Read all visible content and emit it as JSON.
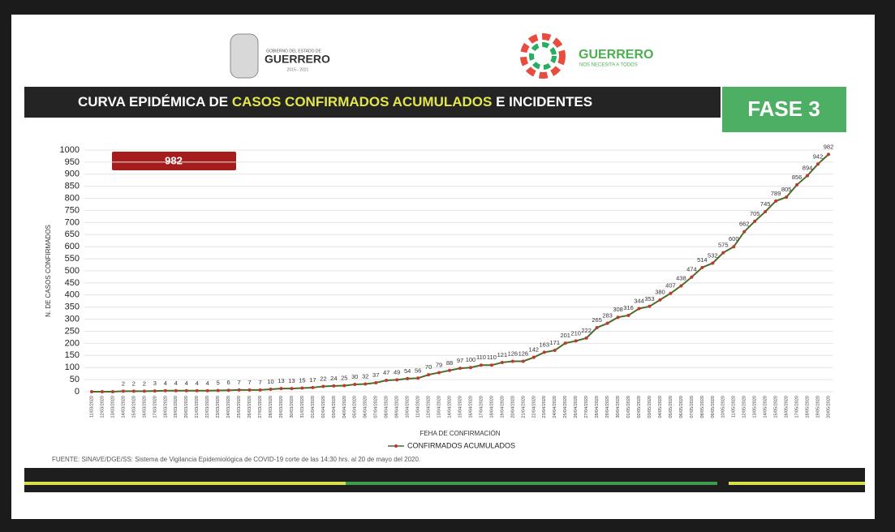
{
  "header": {
    "gov_small": "GOBIERNO DEL ESTADO DE",
    "gov_name": "GUERRERO",
    "gov_years": "2015 - 2021",
    "brand": "GUERRERO",
    "brand_tag": "NOS NECESITA A TODOS"
  },
  "banner": {
    "part1": "CURVA EPIDÉMICA DE",
    "part2": "CASOS CONFIRMADOS ACUMULADOS",
    "part3": "E INCIDENTES",
    "phase": "FASE 3"
  },
  "highlight": "982",
  "source": "FUENTE: SINAVE/DGE/SS: Sistema de Vigilancia Epidemiológica de COVID-19 corte de las 14:30 hrs. al 20 de mayo del 2020.",
  "chart_data": {
    "type": "line",
    "y_label": "N. DE CASOS CONFIRMADOS",
    "x_label": "FEHA DE CONFIRMACIÓN",
    "categories": [
      "11/03/2020",
      "12/03/2020",
      "13/03/2020",
      "14/03/2020",
      "15/03/2020",
      "16/03/2020",
      "17/03/2020",
      "18/03/2020",
      "19/03/2020",
      "20/03/2020",
      "21/03/2020",
      "22/03/2020",
      "23/03/2020",
      "24/03/2020",
      "25/03/2020",
      "26/03/2020",
      "27/03/2020",
      "28/03/2020",
      "29/03/2020",
      "30/03/2020",
      "31/03/2020",
      "01/04/2020",
      "02/04/2020",
      "03/04/2020",
      "04/04/2020",
      "05/04/2020",
      "06/04/2020",
      "07/04/2020",
      "08/04/2020",
      "09/04/2020",
      "10/04/2020",
      "11/04/2020",
      "12/04/2020",
      "13/04/2020",
      "14/04/2020",
      "15/04/2020",
      "16/04/2020",
      "17/04/2020",
      "18/04/2020",
      "19/04/2020",
      "20/04/2020",
      "21/04/2020",
      "22/04/2020",
      "23/04/2020",
      "24/04/2020",
      "25/04/2020",
      "26/04/2020",
      "27/04/2020",
      "28/04/2020",
      "29/04/2020",
      "30/04/2020",
      "01/05/2020",
      "02/05/2020",
      "03/05/2020",
      "04/05/2020",
      "05/05/2020",
      "06/05/2020",
      "07/05/2020",
      "08/05/2020",
      "09/05/2020",
      "10/05/2020",
      "11/05/2020",
      "12/05/2020",
      "13/05/2020",
      "14/05/2020",
      "15/05/2020",
      "16/05/2020",
      "17/05/2020",
      "18/05/2020",
      "19/05/2020",
      "20/05/2020"
    ],
    "series": [
      {
        "name": "CONFIRMADOS ACUMULADOS",
        "color": "#c0392b",
        "line_color": "#4f6b2c",
        "values": [
          0,
          0,
          0,
          2,
          2,
          2,
          3,
          4,
          4,
          4,
          4,
          4,
          5,
          6,
          7,
          7,
          7,
          10,
          13,
          13,
          15,
          17,
          22,
          24,
          25,
          30,
          32,
          37,
          47,
          49,
          54,
          56,
          70,
          79,
          88,
          97,
          100,
          110,
          110,
          121,
          126,
          126,
          142,
          163,
          171,
          201,
          210,
          222,
          265,
          283,
          308,
          316,
          344,
          353,
          380,
          407,
          438,
          474,
          514,
          532,
          575,
          600,
          662,
          705,
          745,
          789,
          805,
          856,
          894,
          942,
          982
        ]
      }
    ],
    "ylim": [
      0,
      1000
    ],
    "yticks": [
      0,
      50,
      100,
      150,
      200,
      250,
      300,
      350,
      400,
      450,
      500,
      550,
      600,
      650,
      700,
      750,
      800,
      850,
      900,
      950,
      1000
    ],
    "grid": true
  }
}
